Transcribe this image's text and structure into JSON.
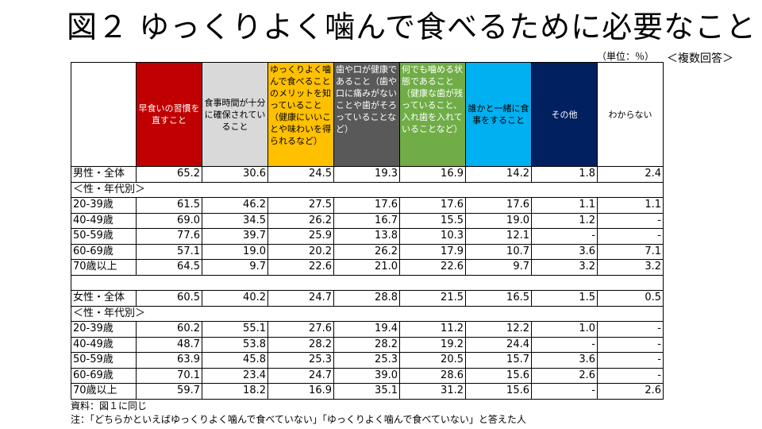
{
  "title": "図２ ゆっくりよく噛んで食べるために必要なこと",
  "unit_label": "（単位：％）",
  "multi_answer": "＜複数回答＞",
  "columns": [
    {
      "label": "早食いの習慣を直すこと",
      "bg": "#c00000",
      "fg": "#ffffff"
    },
    {
      "label": "食事時間が十分に確保されていること",
      "bg": "#d9d9d9",
      "fg": "#000000"
    },
    {
      "label": "ゆっくりよく噛んで食べることのメリットを知っていること（健康にいいことや味わいを得られるなど）",
      "bg": "#ffc000",
      "fg": "#000000"
    },
    {
      "label": "歯や口が健康であること（歯や口に痛みがないことや歯がそろっていることなど）",
      "bg": "#595959",
      "fg": "#ffffff"
    },
    {
      "label": "何でも噛める状態であること（健康な歯が残っていること、入れ歯を入れていることなど）",
      "bg": "#70ad47",
      "fg": "#ffffff"
    },
    {
      "label": "誰かと一緒に食事をすること",
      "bg": "#00b0f0",
      "fg": "#000000"
    },
    {
      "label": "その他",
      "bg": "#002060",
      "fg": "#ffffff"
    },
    {
      "label": "わからない",
      "bg": "#ffffff",
      "fg": "#000000"
    }
  ],
  "rows": [
    {
      "type": "data",
      "label": "男性・全体",
      "values": [
        "65.2",
        "30.6",
        "24.5",
        "19.3",
        "16.9",
        "14.2",
        "1.8",
        "2.4"
      ]
    },
    {
      "type": "section",
      "label": "＜性・年代別＞"
    },
    {
      "type": "data",
      "label": "20-39歳",
      "values": [
        "61.5",
        "46.2",
        "27.5",
        "17.6",
        "17.6",
        "17.6",
        "1.1",
        "1.1"
      ]
    },
    {
      "type": "data",
      "label": "40-49歳",
      "values": [
        "69.0",
        "34.5",
        "26.2",
        "16.7",
        "15.5",
        "19.0",
        "1.2",
        "-"
      ]
    },
    {
      "type": "data",
      "label": "50-59歳",
      "values": [
        "77.6",
        "39.7",
        "25.9",
        "13.8",
        "10.3",
        "12.1",
        "-",
        "-"
      ]
    },
    {
      "type": "data",
      "label": "60-69歳",
      "values": [
        "57.1",
        "19.0",
        "20.2",
        "26.2",
        "17.9",
        "10.7",
        "3.6",
        "7.1"
      ]
    },
    {
      "type": "data",
      "label": "70歳以上",
      "values": [
        "64.5",
        "9.7",
        "22.6",
        "21.0",
        "22.6",
        "9.7",
        "3.2",
        "3.2"
      ]
    },
    {
      "type": "gap"
    },
    {
      "type": "data",
      "label": "女性・全体",
      "values": [
        "60.5",
        "40.2",
        "24.7",
        "28.8",
        "21.5",
        "16.5",
        "1.5",
        "0.5"
      ]
    },
    {
      "type": "section",
      "label": "＜性・年代別＞"
    },
    {
      "type": "data",
      "label": "20-39歳",
      "values": [
        "60.2",
        "55.1",
        "27.6",
        "19.4",
        "11.2",
        "12.2",
        "1.0",
        "-"
      ]
    },
    {
      "type": "data",
      "label": "40-49歳",
      "values": [
        "48.7",
        "53.8",
        "28.2",
        "28.2",
        "19.2",
        "24.4",
        "-",
        "-"
      ]
    },
    {
      "type": "data",
      "label": "50-59歳",
      "values": [
        "63.9",
        "45.8",
        "25.3",
        "25.3",
        "20.5",
        "15.7",
        "3.6",
        "-"
      ]
    },
    {
      "type": "data",
      "label": "60-69歳",
      "values": [
        "70.1",
        "23.4",
        "24.7",
        "39.0",
        "28.6",
        "15.6",
        "2.6",
        "-"
      ]
    },
    {
      "type": "data",
      "label": "70歳以上",
      "values": [
        "59.7",
        "18.2",
        "16.9",
        "35.1",
        "31.2",
        "15.6",
        "-",
        "2.6"
      ]
    }
  ],
  "source": "資料：図１に同じ",
  "note": "注：「どちらかといえばゆっくりよく噛んで食べていない」「ゆっくりよく噛んで食べていない」と答えた人"
}
